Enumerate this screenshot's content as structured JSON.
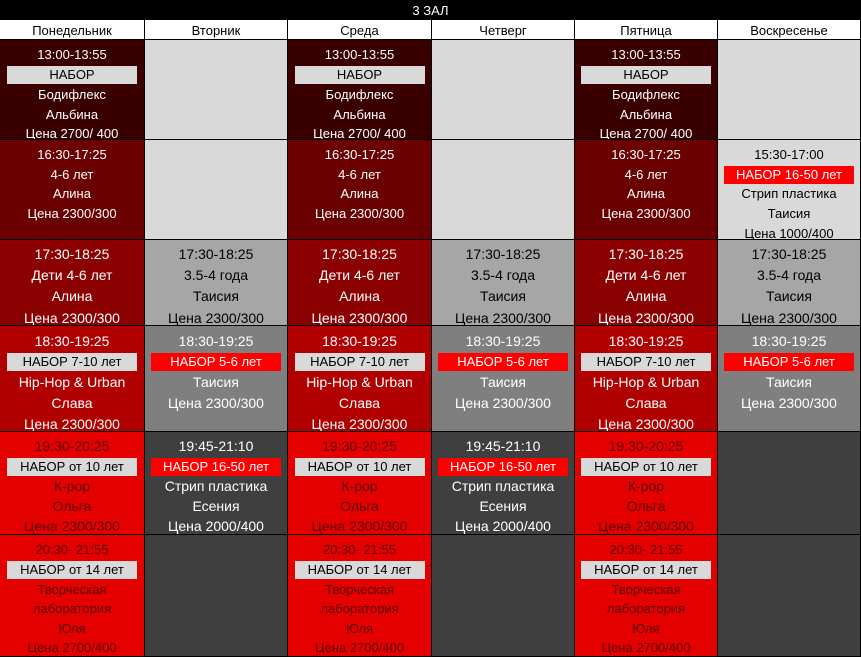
{
  "title": "3 ЗАЛ",
  "days": [
    "Понедельник",
    "Вторник",
    "Среда",
    "Четверг",
    "Пятница",
    "Воскресенье"
  ],
  "colors": {
    "darkest": "#3a0000",
    "dark": "#6a0000",
    "maroon": "#8b0000",
    "crimson": "#b00000",
    "red": "#e50000",
    "light_gray": "#d9d9d9",
    "gray": "#a6a6a6",
    "mid_gray": "#7f7f7f",
    "dark_gray": "#3f3f3f",
    "badge_gray": "#d9d9d9",
    "badge_red": "#ff0000"
  },
  "rows": [
    {
      "cells": [
        {
          "bg": "darkest",
          "badge_style": "gray",
          "lines": [
            "13:00-13:55",
            "НАБОР",
            "Бодифлекс",
            "Альбина",
            "Цена 2700/ 400"
          ],
          "badge_index": 1
        },
        {
          "bg": "light_gray",
          "lines": []
        },
        {
          "bg": "darkest",
          "badge_style": "gray",
          "lines": [
            "13:00-13:55",
            "НАБОР",
            "Бодифлекс",
            "Альбина",
            "Цена 2700/ 400"
          ],
          "badge_index": 1
        },
        {
          "bg": "light_gray",
          "lines": []
        },
        {
          "bg": "darkest",
          "badge_style": "gray",
          "lines": [
            "13:00-13:55",
            "НАБОР",
            "Бодифлекс",
            "Альбина",
            "Цена 2700/ 400"
          ],
          "badge_index": 1
        },
        {
          "bg": "light_gray",
          "lines": []
        }
      ]
    },
    {
      "cells": [
        {
          "bg": "dark",
          "lines": [
            "16:30-17:25",
            "4-6 лет",
            "Алина",
            "Цена 2300/300"
          ]
        },
        {
          "bg": "light_gray",
          "lines": []
        },
        {
          "bg": "dark",
          "lines": [
            "16:30-17:25",
            "4-6 лет",
            "Алина",
            "Цена 2300/300"
          ]
        },
        {
          "bg": "light_gray",
          "lines": []
        },
        {
          "bg": "dark",
          "lines": [
            "16:30-17:25",
            "4-6 лет",
            "Алина",
            "Цена 2300/300"
          ]
        },
        {
          "bg": "light_gray",
          "badge_style": "red",
          "text_color": "black",
          "lines": [
            "15:30-17:00",
            "НАБОР 16-50 лет",
            "Стрип пластика",
            "Таисия",
            "Цена 1000/400"
          ],
          "badge_index": 1
        }
      ]
    },
    {
      "cells": [
        {
          "bg": "maroon",
          "lines": [
            "17:30-18:25",
            "Дети 4-6 лет",
            "Алина",
            "Цена 2300/300"
          ]
        },
        {
          "bg": "gray",
          "text_color": "black",
          "lines": [
            "17:30-18:25",
            "3.5-4 года",
            "Таисия",
            "Цена 2300/300"
          ]
        },
        {
          "bg": "maroon",
          "lines": [
            "17:30-18:25",
            "Дети 4-6 лет",
            "Алина",
            "Цена 2300/300"
          ]
        },
        {
          "bg": "gray",
          "text_color": "black",
          "lines": [
            "17:30-18:25",
            "3.5-4 года",
            "Таисия",
            "Цена 2300/300"
          ]
        },
        {
          "bg": "maroon",
          "lines": [
            "17:30-18:25",
            "Дети 4-6 лет",
            "Алина",
            "Цена 2300/300"
          ]
        },
        {
          "bg": "gray",
          "text_color": "black",
          "lines": [
            "17:30-18:25",
            "3.5-4 года",
            "Таисия",
            "Цена 2300/300"
          ]
        }
      ]
    },
    {
      "cells": [
        {
          "bg": "crimson",
          "badge_style": "gray",
          "lines": [
            "18:30-19:25",
            "НАБОР 7-10 лет",
            "Hip-Hop & Urban",
            "Слава",
            "Цена 2300/300"
          ],
          "badge_index": 1
        },
        {
          "bg": "mid_gray",
          "badge_style": "red",
          "lines": [
            "18:30-19:25",
            "НАБОР 5-6 лет",
            "Таисия",
            "Цена 2300/300"
          ],
          "badge_index": 1
        },
        {
          "bg": "crimson",
          "badge_style": "gray",
          "lines": [
            "18:30-19:25",
            "НАБОР 7-10 лет",
            "Hip-Hop & Urban",
            "Слава",
            "Цена 2300/300"
          ],
          "badge_index": 1
        },
        {
          "bg": "mid_gray",
          "badge_style": "red",
          "lines": [
            "18:30-19:25",
            "НАБОР 5-6 лет",
            "Таисия",
            "Цена 2300/300"
          ],
          "badge_index": 1
        },
        {
          "bg": "crimson",
          "badge_style": "gray",
          "lines": [
            "18:30-19:25",
            "НАБОР 7-10 лет",
            "Hip-Hop & Urban",
            "Слава",
            "Цена 2300/300"
          ],
          "badge_index": 1
        },
        {
          "bg": "mid_gray",
          "badge_style": "red",
          "lines": [
            "18:30-19:25",
            "НАБОР 5-6 лет",
            "Таисия",
            "Цена 2300/300"
          ],
          "badge_index": 1
        }
      ]
    },
    {
      "cells": [
        {
          "bg": "red",
          "badge_style": "gray",
          "text_color": "dim",
          "lines": [
            "19:30-20:25",
            "НАБОР от 10 лет",
            "К-рор",
            "Ольга",
            "Цена 2300/300"
          ],
          "badge_index": 1
        },
        {
          "bg": "dark_gray",
          "badge_style": "red",
          "lines": [
            "19:45-21:10",
            "НАБОР 16-50 лет",
            "Стрип пластика",
            "Есения",
            "Цена 2000/400"
          ],
          "badge_index": 1
        },
        {
          "bg": "red",
          "badge_style": "gray",
          "text_color": "dim",
          "lines": [
            "19:30-20:25",
            "НАБОР от 10 лет",
            "К-рор",
            "Ольга",
            "Цена 2300/300"
          ],
          "badge_index": 1
        },
        {
          "bg": "dark_gray",
          "badge_style": "red",
          "lines": [
            "19:45-21:10",
            "НАБОР 16-50 лет",
            "Стрип пластика",
            "Есения",
            "Цена 2000/400"
          ],
          "badge_index": 1
        },
        {
          "bg": "red",
          "badge_style": "gray",
          "text_color": "dim",
          "lines": [
            "19:30-20:25",
            "НАБОР от 10 лет",
            "К-рор",
            "Ольга",
            "Цена 2300/300"
          ],
          "badge_index": 1
        },
        {
          "bg": "dark_gray",
          "lines": []
        }
      ]
    },
    {
      "cells": [
        {
          "bg": "red",
          "badge_style": "gray",
          "text_color": "dim",
          "lines": [
            "20:30- 21:55",
            "НАБОР от 14 лет",
            "Творческая",
            "лаборатория",
            "Юля",
            "Цена 2700/400"
          ],
          "badge_index": 1
        },
        {
          "bg": "dark_gray",
          "lines": []
        },
        {
          "bg": "red",
          "badge_style": "gray",
          "text_color": "dim",
          "lines": [
            "20:30- 21:55",
            "НАБОР от 14 лет",
            "Творческая",
            "лаборатория",
            "Юля",
            "Цена 2700/400"
          ],
          "badge_index": 1
        },
        {
          "bg": "dark_gray",
          "lines": []
        },
        {
          "bg": "red",
          "badge_style": "gray",
          "text_color": "dim",
          "lines": [
            "20:30- 21:55",
            "НАБОР от 14 лет",
            "Творческая",
            "лаборатория",
            "Юля",
            "Цена 2700/400"
          ],
          "badge_index": 1
        },
        {
          "bg": "dark_gray",
          "lines": []
        }
      ]
    }
  ]
}
